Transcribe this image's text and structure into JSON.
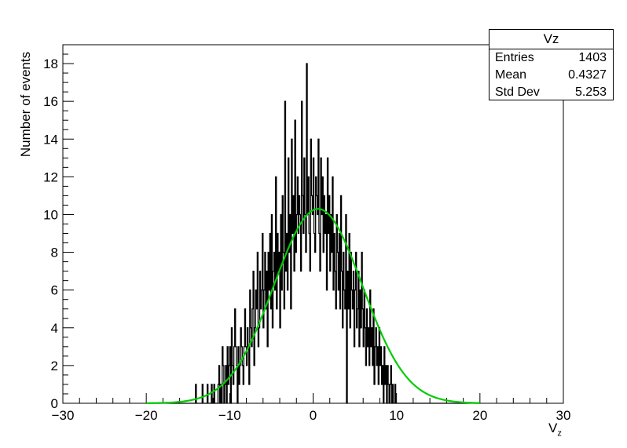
{
  "chart_data": {
    "type": "bar",
    "histogram_style": "step",
    "xlabel": "V",
    "xlabel_sub": "z",
    "ylabel": "Number of events",
    "xlim": [
      -30,
      30
    ],
    "ylim": [
      0,
      19
    ],
    "x_ticks": [
      "−30",
      "−20",
      "−10",
      "0",
      "10",
      "20",
      "30"
    ],
    "y_ticks": [
      "0",
      "2",
      "4",
      "6",
      "8",
      "10",
      "12",
      "14",
      "16",
      "18"
    ],
    "grid": false,
    "colors": {
      "histogram": "#000000",
      "fit": "#00cc00"
    },
    "bin_range": [
      -20,
      20
    ],
    "bin_width": 0.1,
    "histogram_counts": [
      0,
      0,
      0,
      0,
      0,
      0,
      0,
      0,
      0,
      0,
      0,
      0,
      0,
      0,
      0,
      0,
      0,
      0,
      0,
      0,
      0,
      0,
      0,
      0,
      0,
      0,
      0,
      0,
      0,
      0,
      0,
      0,
      0,
      0,
      0,
      0,
      0,
      0,
      0,
      0,
      0,
      0,
      0,
      0,
      0,
      0,
      0,
      0,
      0,
      0,
      0,
      0,
      0,
      0,
      0,
      0,
      0,
      0,
      0,
      1,
      0,
      0,
      0,
      0,
      0,
      0,
      0,
      1,
      0,
      0,
      0,
      0,
      0,
      1,
      0,
      0,
      0,
      0,
      1,
      0,
      0,
      1,
      0,
      0,
      0,
      0,
      1,
      2,
      0,
      1,
      0,
      3,
      2,
      0,
      1,
      2,
      0,
      3,
      1,
      2,
      3,
      0,
      4,
      2,
      1,
      3,
      5,
      3,
      2,
      0,
      3,
      1,
      2,
      4,
      3,
      2,
      1,
      3,
      5,
      3,
      2,
      4,
      3,
      1,
      6,
      4,
      3,
      5,
      7,
      2,
      4,
      6,
      5,
      8,
      3,
      4,
      7,
      5,
      6,
      9,
      4,
      6,
      8,
      5,
      7,
      3,
      8,
      6,
      9,
      5,
      10,
      4,
      7,
      8,
      6,
      12,
      5,
      9,
      7,
      8,
      4,
      10,
      6,
      11,
      8,
      5,
      16,
      7,
      9,
      6,
      13,
      8,
      10,
      5,
      14,
      9,
      11,
      7,
      15,
      8,
      10,
      12,
      9,
      11,
      10,
      7,
      16,
      11,
      9,
      13,
      10,
      8,
      18,
      10,
      12,
      9,
      7,
      14,
      11,
      10,
      13,
      9,
      8,
      12,
      11,
      10,
      14,
      9,
      7,
      13,
      10,
      12,
      8,
      11,
      9,
      10,
      6,
      13,
      9,
      11,
      7,
      10,
      8,
      12,
      6,
      9,
      7,
      5,
      10,
      8,
      6,
      9,
      5,
      11,
      7,
      4,
      8,
      6,
      5,
      10,
      0,
      7,
      5,
      9,
      4,
      8,
      6,
      5,
      7,
      3,
      6,
      8,
      4,
      5,
      7,
      3,
      6,
      4,
      8,
      5,
      3,
      6,
      4,
      2,
      5,
      3,
      4,
      2,
      6,
      3,
      4,
      2,
      5,
      1,
      3,
      4,
      2,
      3,
      1,
      4,
      2,
      3,
      1,
      2,
      0,
      3,
      1,
      2,
      0,
      2,
      1,
      0,
      1,
      2,
      0,
      1,
      0,
      0,
      1,
      0,
      0,
      0,
      0,
      0,
      0,
      0,
      0,
      0,
      0,
      0,
      0,
      0,
      0,
      0,
      0,
      0,
      0,
      0,
      0,
      0,
      0,
      0,
      0,
      0,
      0,
      0,
      0,
      0,
      0,
      0,
      0,
      0,
      0,
      0,
      0,
      0,
      0,
      0,
      0,
      0,
      0,
      0,
      0,
      0,
      0,
      0,
      0,
      0,
      0,
      0,
      0,
      0,
      0,
      0,
      0,
      0,
      0,
      0,
      0,
      0,
      0,
      0,
      0,
      0,
      0,
      0,
      0,
      0,
      0,
      0,
      0,
      0,
      0,
      0,
      0,
      0,
      0,
      0,
      0,
      0,
      0,
      0,
      0,
      0,
      0,
      0,
      0,
      0,
      0,
      0,
      0,
      0,
      0,
      0,
      0,
      0,
      0,
      0,
      0,
      0
    ],
    "fit": {
      "type": "gaussian",
      "x_range": [
        -20,
        20
      ],
      "amplitude": 10.3,
      "mean": 0.6,
      "sigma": 5.3
    },
    "stats_box": {
      "title": "Vz",
      "rows": [
        {
          "label": "Entries",
          "value": "1403"
        },
        {
          "label": "Mean",
          "value": "0.4327"
        },
        {
          "label": "Std Dev",
          "value": "5.253"
        }
      ],
      "position": "top-right"
    }
  }
}
